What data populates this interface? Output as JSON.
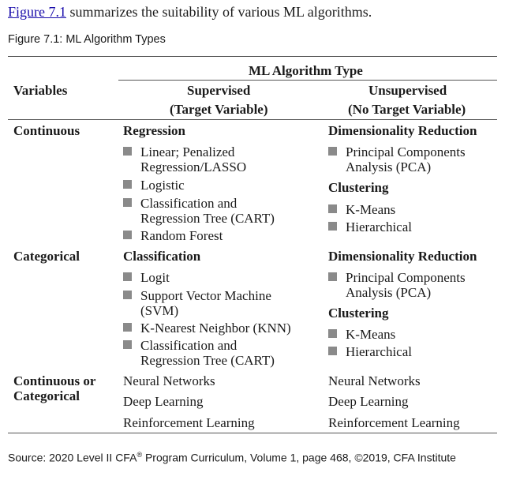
{
  "intro": {
    "link_text": "Figure 7.1",
    "rest_text": " summarizes the suitability of various ML algorithms."
  },
  "caption": "Figure 7.1: ML Algorithm Types",
  "table": {
    "group_header": "ML Algorithm Type",
    "variables_header": "Variables",
    "supervised_header_1": "Supervised",
    "supervised_header_2": "(Target Variable)",
    "unsupervised_header_1": "Unsupervised",
    "unsupervised_header_2": "(No Target Variable)",
    "rows": [
      {
        "variable_1": "Continuous",
        "variable_2": "",
        "supervised": {
          "heading": "Regression",
          "items": [
            "Linear; Penalized",
            "Regression/LASSO",
            "Logistic",
            "Classification and",
            "Regression Tree (CART)",
            "Random Forest"
          ]
        },
        "unsupervised": {
          "heading_1": "Dimensionality Reduction",
          "items_1": [
            "Principal Components",
            "Analysis (PCA)"
          ],
          "heading_2": "Clustering",
          "items_2": [
            "K-Means",
            "Hierarchical"
          ]
        }
      },
      {
        "variable_1": "Categorical",
        "variable_2": "",
        "supervised": {
          "heading": "Classification",
          "items": [
            "Logit",
            "Support Vector Machine",
            "(SVM)",
            "K-Nearest Neighbor (KNN)",
            "Classification and",
            "Regression Tree (CART)"
          ]
        },
        "unsupervised": {
          "heading_1": "Dimensionality Reduction",
          "items_1": [
            "Principal Components",
            "Analysis (PCA)"
          ],
          "heading_2": "Clustering",
          "items_2": [
            "K-Means",
            "Hierarchical"
          ]
        }
      },
      {
        "variable_1": "Continuous or",
        "variable_2": "Categorical",
        "supervised_items": [
          "Neural Networks",
          "Deep Learning",
          "Reinforcement Learning"
        ],
        "unsupervised_items": [
          "Neural Networks",
          "Deep Learning",
          "Reinforcement Learning"
        ]
      }
    ]
  },
  "source": {
    "prefix": "Source: 2020 Level II CFA",
    "registered": "®",
    "suffix": " Program Curriculum, Volume 1, page 468, ©2019, CFA Institute"
  },
  "colors": {
    "link": "#1a0dab",
    "rule": "#555555",
    "bullet": "#8a8a8a"
  }
}
